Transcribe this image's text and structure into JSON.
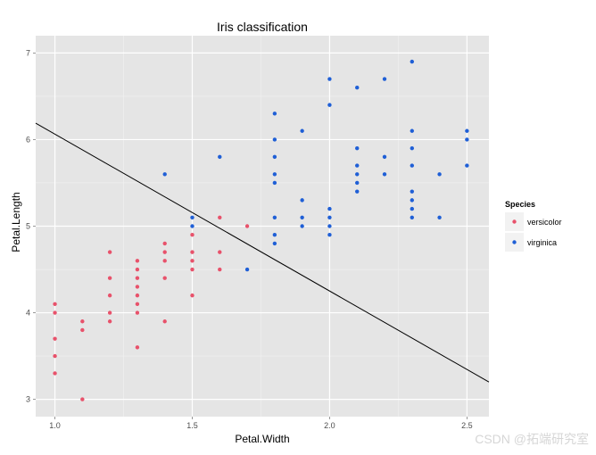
{
  "chart_data": {
    "type": "scatter",
    "title": "Iris classification",
    "xlabel": "Petal.Width",
    "ylabel": "Petal.Length",
    "xlim": [
      0.93,
      2.58
    ],
    "ylim": [
      2.8,
      7.2
    ],
    "xticks": [
      1.0,
      1.5,
      2.0,
      2.5
    ],
    "xtick_labels": [
      "1.0",
      "1.5",
      "2.0",
      "2.5"
    ],
    "yticks": [
      3,
      4,
      5,
      6,
      7
    ],
    "ytick_labels": [
      "3",
      "4",
      "5",
      "6",
      "7"
    ],
    "grid": true,
    "legend_title": "Species",
    "legend_position": "right",
    "series": [
      {
        "name": "versicolor",
        "color": "#e8526b",
        "points": [
          [
            1.0,
            4.1
          ],
          [
            1.0,
            4.0
          ],
          [
            1.0,
            3.7
          ],
          [
            1.0,
            3.5
          ],
          [
            1.0,
            3.3
          ],
          [
            1.1,
            3.9
          ],
          [
            1.1,
            3.8
          ],
          [
            1.1,
            3.0
          ],
          [
            1.2,
            4.7
          ],
          [
            1.2,
            4.4
          ],
          [
            1.2,
            4.2
          ],
          [
            1.2,
            4.0
          ],
          [
            1.2,
            3.9
          ],
          [
            1.3,
            4.6
          ],
          [
            1.3,
            4.5
          ],
          [
            1.3,
            4.4
          ],
          [
            1.3,
            4.3
          ],
          [
            1.3,
            4.2
          ],
          [
            1.3,
            4.1
          ],
          [
            1.3,
            4.0
          ],
          [
            1.3,
            3.6
          ],
          [
            1.4,
            4.8
          ],
          [
            1.4,
            4.7
          ],
          [
            1.4,
            4.6
          ],
          [
            1.4,
            4.4
          ],
          [
            1.4,
            3.9
          ],
          [
            1.5,
            4.9
          ],
          [
            1.5,
            4.7
          ],
          [
            1.5,
            4.6
          ],
          [
            1.5,
            4.5
          ],
          [
            1.5,
            4.2
          ],
          [
            1.6,
            5.1
          ],
          [
            1.6,
            4.7
          ],
          [
            1.6,
            4.5
          ],
          [
            1.7,
            5.0
          ]
        ]
      },
      {
        "name": "virginica",
        "color": "#1f5fd6",
        "points": [
          [
            1.4,
            5.6
          ],
          [
            1.5,
            5.1
          ],
          [
            1.5,
            5.0
          ],
          [
            1.6,
            5.8
          ],
          [
            1.7,
            4.5
          ],
          [
            1.8,
            6.3
          ],
          [
            1.8,
            6.0
          ],
          [
            1.8,
            5.8
          ],
          [
            1.8,
            5.6
          ],
          [
            1.8,
            5.5
          ],
          [
            1.8,
            5.1
          ],
          [
            1.8,
            4.9
          ],
          [
            1.8,
            4.8
          ],
          [
            1.9,
            6.1
          ],
          [
            1.9,
            5.3
          ],
          [
            1.9,
            5.1
          ],
          [
            1.9,
            5.0
          ],
          [
            2.0,
            6.7
          ],
          [
            2.0,
            6.4
          ],
          [
            2.0,
            5.2
          ],
          [
            2.0,
            5.1
          ],
          [
            2.0,
            5.0
          ],
          [
            2.0,
            4.9
          ],
          [
            2.1,
            6.6
          ],
          [
            2.1,
            5.9
          ],
          [
            2.1,
            5.7
          ],
          [
            2.1,
            5.6
          ],
          [
            2.1,
            5.5
          ],
          [
            2.1,
            5.4
          ],
          [
            2.2,
            6.7
          ],
          [
            2.2,
            5.8
          ],
          [
            2.2,
            5.6
          ],
          [
            2.3,
            6.9
          ],
          [
            2.3,
            6.1
          ],
          [
            2.3,
            5.9
          ],
          [
            2.3,
            5.7
          ],
          [
            2.3,
            5.4
          ],
          [
            2.3,
            5.3
          ],
          [
            2.3,
            5.2
          ],
          [
            2.3,
            5.1
          ],
          [
            2.4,
            5.6
          ],
          [
            2.4,
            5.1
          ],
          [
            2.5,
            6.1
          ],
          [
            2.5,
            6.0
          ],
          [
            2.5,
            5.7
          ]
        ]
      }
    ],
    "decision_line": {
      "color": "#000000",
      "points": [
        [
          0.93,
          6.19
        ],
        [
          2.58,
          3.2
        ]
      ]
    }
  },
  "watermark": {
    "text": "CSDN @拓端研究室"
  }
}
